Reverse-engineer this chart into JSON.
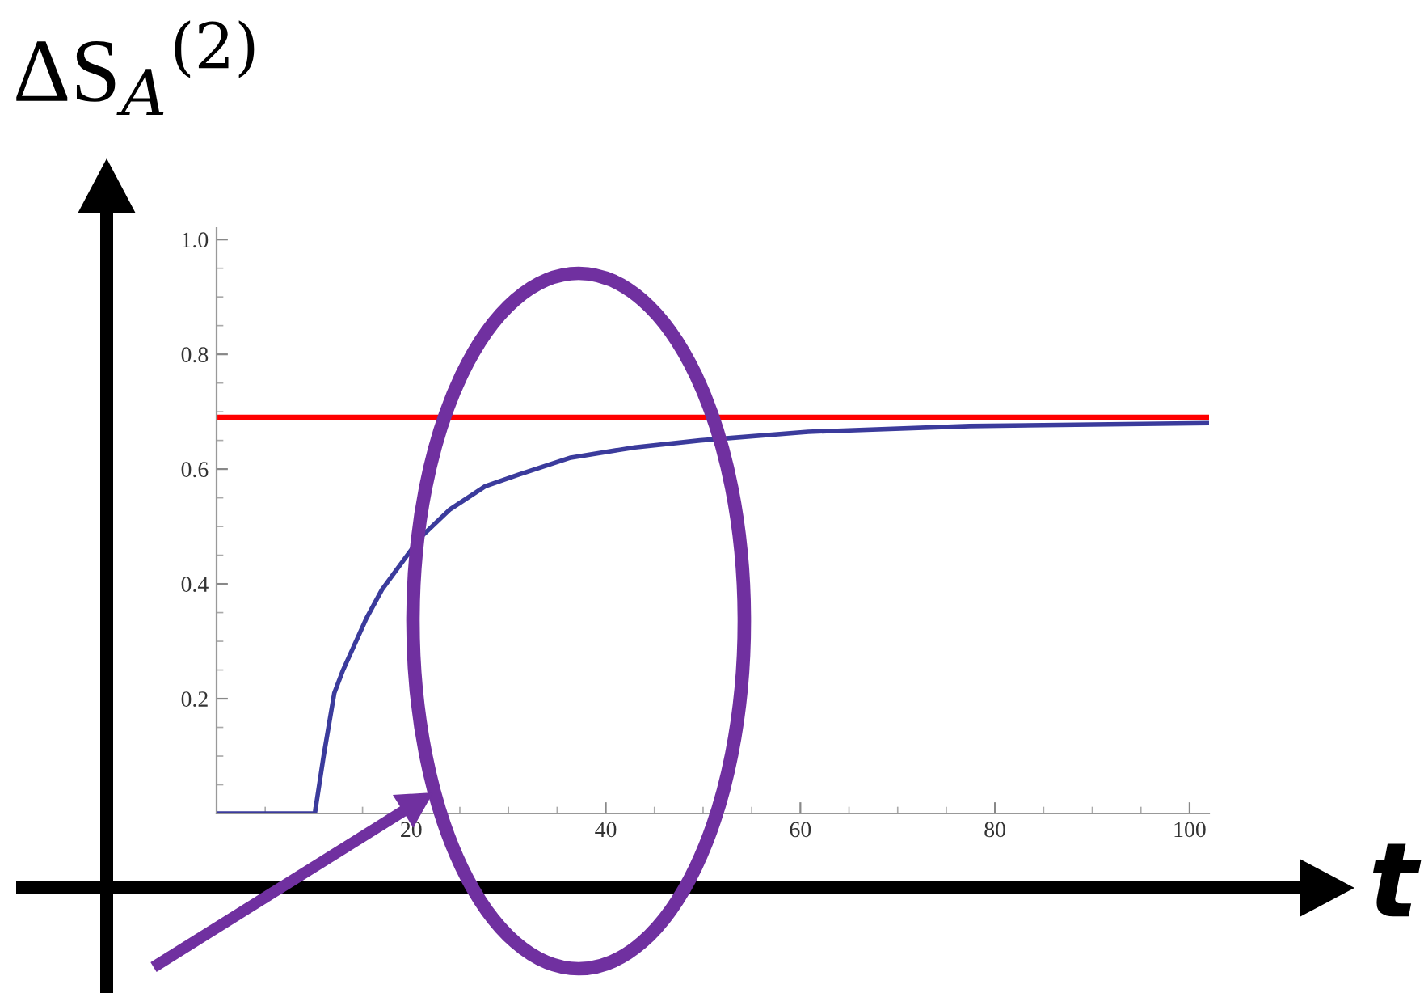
{
  "chart_data": {
    "type": "line",
    "xlabel": "t",
    "ylabel": "ΔS$_{A}$$^{(2)}$",
    "series": [
      {
        "color": "#3b3b9c",
        "x": [
          0,
          10.1,
          11,
          12.1,
          13,
          15.4,
          17,
          20.9,
          24,
          27.6,
          31,
          36.4,
          43,
          49.7,
          60.8,
          77.4,
          102
        ],
        "values": [
          0,
          0,
          0.1,
          0.21,
          0.25,
          0.34,
          0.39,
          0.48,
          0.53,
          0.57,
          0.59,
          0.62,
          0.638,
          0.65,
          0.665,
          0.675,
          0.68
        ]
      }
    ],
    "ref_lines": [
      {
        "axis": "y",
        "value": 0.69,
        "color": "#ff0000"
      }
    ],
    "xlim": [
      0,
      102
    ],
    "ylim": [
      0,
      1.02
    ],
    "xticks": [
      20,
      40,
      60,
      80,
      100
    ],
    "yticks": [
      0.2,
      0.4,
      0.6,
      0.8,
      {
        "value": 1,
        "label": "1.0"
      }
    ],
    "grid": false,
    "marker": "none",
    "line_style": "solid"
  }
}
